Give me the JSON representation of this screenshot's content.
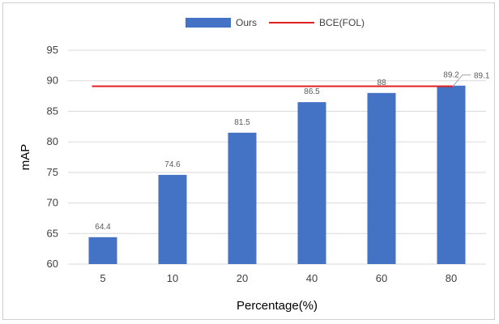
{
  "chart_data": {
    "type": "bar",
    "categories": [
      "5",
      "10",
      "20",
      "40",
      "60",
      "80"
    ],
    "series": [
      {
        "name": "Ours",
        "type": "bar",
        "values": [
          64.4,
          74.6,
          81.5,
          86.5,
          88,
          89.2
        ],
        "color": "#4472c4"
      },
      {
        "name": "BCE(FOL)",
        "type": "line",
        "value": 89.1,
        "color": "#e02020"
      }
    ],
    "data_labels": [
      "64.4",
      "74.6",
      "81.5",
      "86.5",
      "88",
      "89.2"
    ],
    "baseline_label": "89.1",
    "title": "",
    "xlabel": "Percentage(%)",
    "ylabel": "mAP",
    "ylim": [
      60,
      95
    ],
    "yticks": [
      60,
      65,
      70,
      75,
      80,
      85,
      90,
      95
    ],
    "grid": true,
    "legend_position": "top"
  }
}
